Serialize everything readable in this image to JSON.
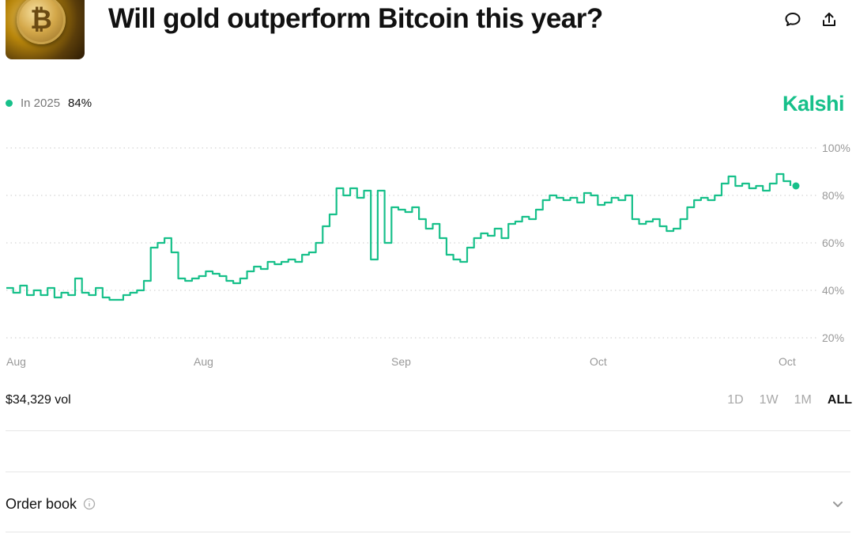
{
  "header": {
    "title": "Will gold outperform Bitcoin this year?",
    "thumbnail_glyph": "₿"
  },
  "legend": {
    "label": "In 2025",
    "value": "84%",
    "color": "#17c08a"
  },
  "brand": {
    "name": "Kalshi",
    "color": "#17c08a"
  },
  "chart_data": {
    "type": "line",
    "ylim": [
      20,
      100
    ],
    "y_ticks": [
      "100%",
      "80%",
      "60%",
      "40%",
      "20%"
    ],
    "y_tick_values": [
      100,
      80,
      60,
      40,
      20
    ],
    "x_tick_labels": [
      "Aug",
      "Aug",
      "Sep",
      "Oct",
      "Oct"
    ],
    "grid": true,
    "series": [
      {
        "color": "#17c08a",
        "values": [
          41,
          39,
          42,
          38,
          40,
          38,
          41,
          37,
          39,
          38,
          45,
          39,
          38,
          41,
          37,
          36,
          36,
          38,
          39,
          40,
          44,
          58,
          60,
          62,
          56,
          45,
          44,
          45,
          46,
          48,
          47,
          46,
          44,
          43,
          45,
          48,
          50,
          49,
          52,
          51,
          52,
          53,
          52,
          55,
          56,
          60,
          67,
          72,
          83,
          80,
          83,
          79,
          82,
          53,
          82,
          60,
          75,
          74,
          73,
          75,
          70,
          66,
          68,
          62,
          55,
          53,
          52,
          58,
          62,
          64,
          63,
          66,
          62,
          68,
          69,
          71,
          70,
          74,
          78,
          80,
          79,
          78,
          79,
          77,
          81,
          80,
          76,
          77,
          79,
          78,
          80,
          70,
          68,
          69,
          70,
          67,
          65,
          66,
          70,
          75,
          78,
          79,
          78,
          80,
          85,
          88,
          84,
          85,
          83,
          84,
          82,
          85,
          89,
          86,
          84
        ]
      }
    ]
  },
  "footer": {
    "volume": "$34,329 vol",
    "ranges": [
      "1D",
      "1W",
      "1M",
      "ALL"
    ],
    "active_range": "ALL"
  },
  "order_book": {
    "label": "Order book"
  },
  "icons": {
    "comment": "comment-icon",
    "share": "share-icon",
    "info": "info-icon",
    "chevron": "chevron-down-icon"
  }
}
